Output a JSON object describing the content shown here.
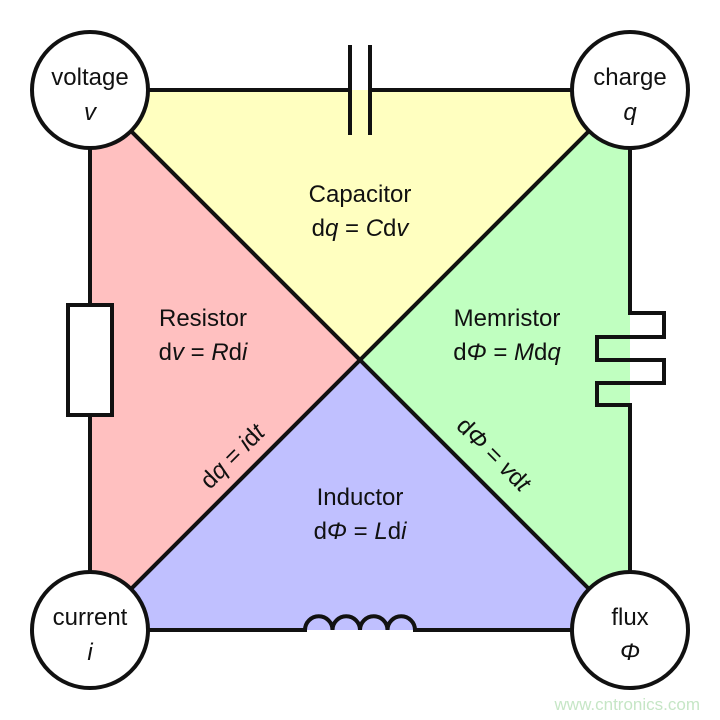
{
  "nodes": {
    "voltage": {
      "name": "voltage",
      "symbol": "v"
    },
    "charge": {
      "name": "charge",
      "symbol": "q"
    },
    "current": {
      "name": "current",
      "symbol": "i"
    },
    "flux": {
      "name": "flux",
      "symbol": "Φ"
    }
  },
  "regions": {
    "capacitor": {
      "name": "Capacitor",
      "eq": [
        "d",
        "q",
        " = ",
        "C",
        "d",
        "v"
      ],
      "color": "#ffffc0"
    },
    "resistor": {
      "name": "Resistor",
      "eq": [
        "d",
        "v",
        " = ",
        "R",
        "d",
        "i"
      ],
      "color": "#ffc0c0"
    },
    "memristor": {
      "name": "Memristor",
      "eq": [
        "d",
        "Φ",
        " = ",
        "M",
        "d",
        "q"
      ],
      "color": "#c0ffc0"
    },
    "inductor": {
      "name": "Inductor",
      "eq": [
        "d",
        "Φ",
        " = ",
        "L",
        "d",
        "i"
      ],
      "color": "#c0c0ff"
    }
  },
  "diagonals": {
    "left": [
      "d",
      "q",
      " = ",
      "i",
      "d",
      "t"
    ],
    "right": [
      "d",
      "Φ",
      " = ",
      "v",
      "d",
      "t"
    ]
  },
  "watermark": "www.cntronics.com"
}
